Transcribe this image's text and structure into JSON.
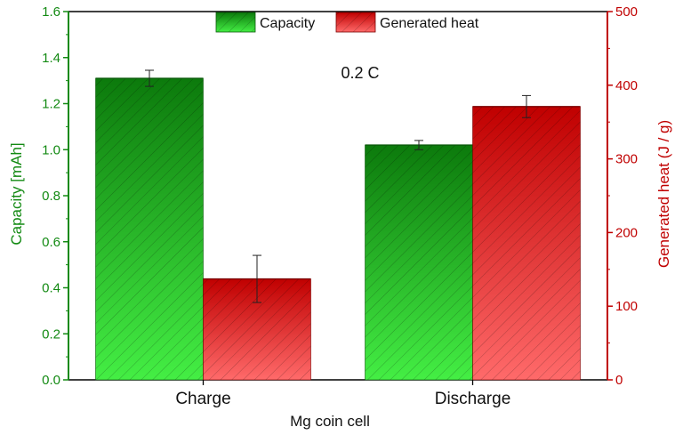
{
  "chart_data": {
    "type": "bar",
    "annotation": "0.2 C",
    "xlabel": "Mg coin cell",
    "categories": [
      "Charge",
      "Discharge"
    ],
    "series": [
      {
        "name": "Capacity",
        "axis": "left",
        "color": "#1aa31a",
        "values": [
          1.31,
          1.02
        ],
        "errors": [
          0.035,
          0.02
        ]
      },
      {
        "name": "Generated heat",
        "axis": "right",
        "color": "#cc0000",
        "values": [
          137,
          371
        ],
        "errors": [
          32,
          15
        ]
      }
    ],
    "y_left": {
      "label": "Capacity [mAh]",
      "range": [
        0,
        1.6
      ],
      "ticks": [
        "0.0",
        "0.2",
        "0.4",
        "0.6",
        "0.8",
        "1.0",
        "1.2",
        "1.4",
        "1.6"
      ],
      "color": "#138a13"
    },
    "y_right": {
      "label": "Generated heat (J / g)",
      "range": [
        0,
        500
      ],
      "ticks": [
        "0",
        "100",
        "200",
        "300",
        "400",
        "500"
      ],
      "color": "#c00000"
    },
    "legend": {
      "placement": "top-center"
    },
    "grid": false
  }
}
